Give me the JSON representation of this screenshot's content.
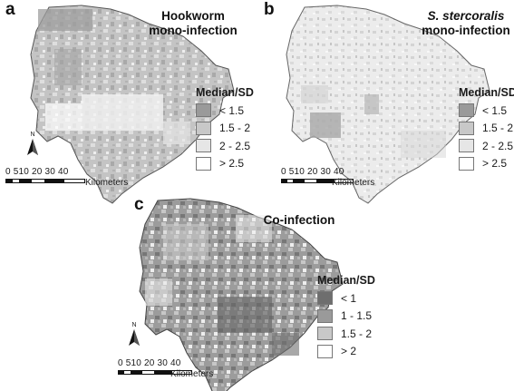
{
  "panels": {
    "a": {
      "label": "a",
      "title_line1": "Hookworm",
      "title_line2": "mono-infection",
      "legend": {
        "title": "Median/SD",
        "items": [
          {
            "label": "< 1.5",
            "color": "#9a9a9a"
          },
          {
            "label": "1.5 - 2",
            "color": "#c8c8c8"
          },
          {
            "label": "2 - 2.5",
            "color": "#e6e6e6"
          },
          {
            "label": "> 2.5",
            "color": "#ffffff"
          }
        ]
      },
      "north": "N",
      "scale": {
        "ticks": "0 510 20 30 40",
        "unit": "Kilometers"
      }
    },
    "b": {
      "label": "b",
      "title_line1": "S. stercoralis",
      "title_line2": "mono-infection",
      "legend": {
        "title": "Median/SD",
        "items": [
          {
            "label": "< 1.5",
            "color": "#9a9a9a"
          },
          {
            "label": "1.5 - 2",
            "color": "#c8c8c8"
          },
          {
            "label": "2 - 2.5",
            "color": "#e6e6e6"
          },
          {
            "label": "> 2.5",
            "color": "#ffffff"
          }
        ]
      },
      "north": "N",
      "scale": {
        "ticks": "0 510 20 30 40",
        "unit": "Kilometers"
      }
    },
    "c": {
      "label": "c",
      "title_line1": "Co-infection",
      "legend": {
        "title": "Median/SD",
        "items": [
          {
            "label": "< 1",
            "color": "#6e6e6e"
          },
          {
            "label": "1 - 1.5",
            "color": "#9a9a9a"
          },
          {
            "label": "1.5 - 2",
            "color": "#c8c8c8"
          },
          {
            "label": "> 2",
            "color": "#ffffff"
          }
        ]
      },
      "north": "N",
      "scale": {
        "ticks": "0 510 20 30 40",
        "unit": "Kilometers"
      }
    }
  }
}
